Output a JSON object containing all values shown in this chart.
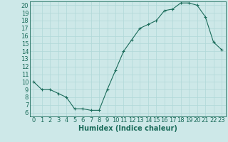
{
  "x": [
    0,
    1,
    2,
    3,
    4,
    5,
    6,
    7,
    8,
    9,
    10,
    11,
    12,
    13,
    14,
    15,
    16,
    17,
    18,
    19,
    20,
    21,
    22,
    23
  ],
  "y": [
    10,
    9,
    9,
    8.5,
    8,
    6.5,
    6.5,
    6.3,
    6.3,
    9,
    11.5,
    14,
    15.5,
    17,
    17.5,
    18,
    19.3,
    19.5,
    20.3,
    20.3,
    20,
    18.5,
    15.2,
    14.2
  ],
  "line_color": "#1a6b5a",
  "marker": "+",
  "marker_size": 3,
  "marker_linewidth": 0.8,
  "bg_color": "#cde8e8",
  "grid_color": "#b0d8d8",
  "xlabel": "Humidex (Indice chaleur)",
  "xlim": [
    -0.5,
    23.5
  ],
  "ylim": [
    5.5,
    20.5
  ],
  "yticks": [
    6,
    7,
    8,
    9,
    10,
    11,
    12,
    13,
    14,
    15,
    16,
    17,
    18,
    19,
    20
  ],
  "xticks": [
    0,
    1,
    2,
    3,
    4,
    5,
    6,
    7,
    8,
    9,
    10,
    11,
    12,
    13,
    14,
    15,
    16,
    17,
    18,
    19,
    20,
    21,
    22,
    23
  ],
  "xlabel_fontsize": 7,
  "tick_fontsize": 6,
  "label_color": "#1a6b5a",
  "linewidth": 0.8
}
